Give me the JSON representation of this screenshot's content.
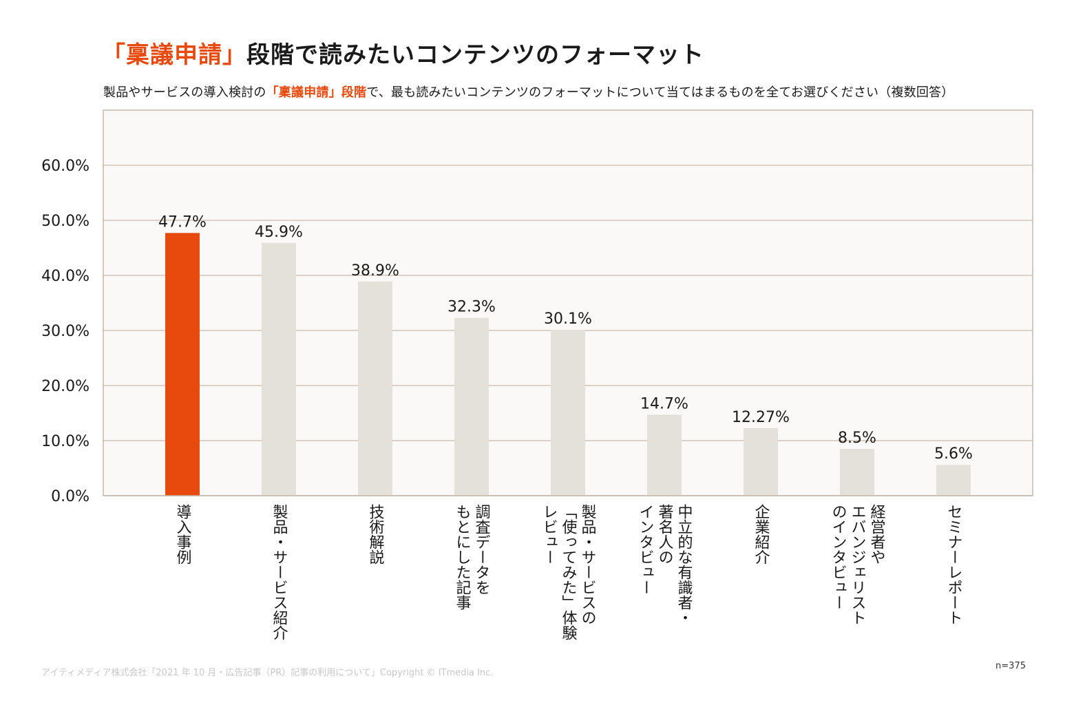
{
  "title": {
    "highlight": "「稟議申請」",
    "rest": "段階で読みたいコンテンツのフォーマット"
  },
  "subtitle": {
    "before": "製品やサービスの導入検討の",
    "highlight": "「稟議申請」段階",
    "after": "で、最も読みたいコンテンツのフォーマットについて当てはまるものを全てお選びください（複数回答）"
  },
  "footer": "アイティメディア株式会社「2021 年 10 月・広告記事（PR）記事の利用について」Copyright © ITmedia Inc.",
  "n_label": "n=375",
  "colors": {
    "highlight_bar": "#e8490d",
    "bar": "#e4e0da",
    "plot_bg": "#faf9f8",
    "grid": "#c8b8aa"
  },
  "chart_data": {
    "type": "bar",
    "categories": [
      "導入事例",
      "製品・サービス紹介",
      "技術解説",
      "調査データを\nもとにした記事",
      "製品・サービスの\n「使ってみた」体験\nレビュー",
      "中立的な有識者・\n著名人の\nインタビュー",
      "企業紹介",
      "経営者や\nエバンジェリスト\nのインタビュー",
      "セミナーレポート"
    ],
    "values": [
      47.7,
      45.9,
      38.9,
      32.3,
      30.1,
      14.7,
      12.27,
      8.5,
      5.6
    ],
    "value_labels": [
      "47.7%",
      "45.9%",
      "38.9%",
      "32.3%",
      "30.1%",
      "14.7%",
      "12.27%",
      "8.5%",
      "5.6%"
    ],
    "highlight_index": 0,
    "y_ticks": [
      0,
      10,
      20,
      30,
      40,
      50,
      60
    ],
    "y_tick_labels": [
      "0.0%",
      "10.0%",
      "20.0%",
      "30.0%",
      "40.0%",
      "50.0%",
      "60.0%"
    ],
    "ylim": [
      0,
      70
    ],
    "grid": true,
    "xlabel": "",
    "ylabel": ""
  }
}
